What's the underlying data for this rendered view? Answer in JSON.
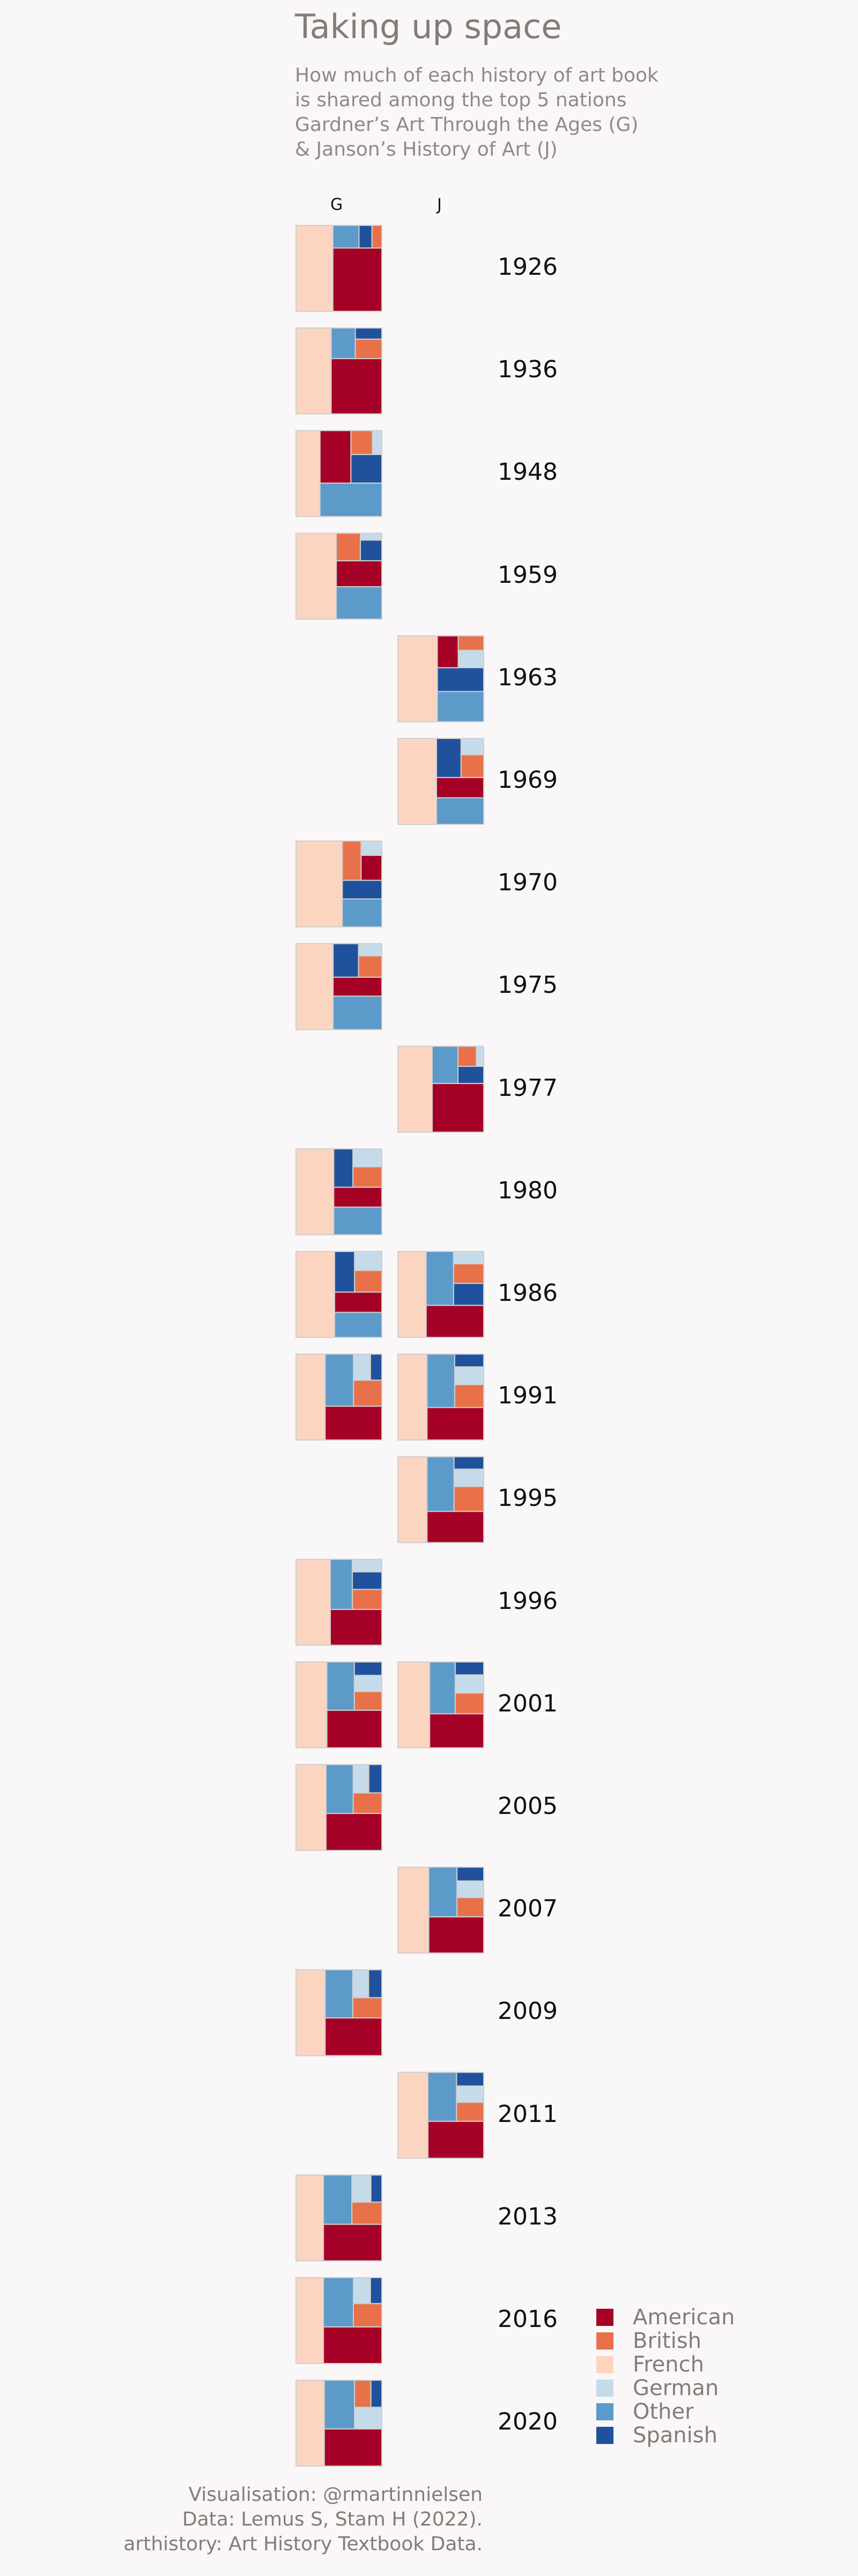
{
  "title": "Taking up space",
  "subtitle": [
    "How much of each history of art book",
    "is shared among the top 5 nations",
    "Gardner’s Art Through the Ages (G)",
    "& Janson’s History of Art (J)"
  ],
  "caption": [
    "Visualisation: @rmartinnielsen",
    "Data: Lemus S, Stam H (2022).",
    "arthistory: Art History Textbook Data."
  ],
  "chart_data": {
    "type": "treemap",
    "columns": [
      "G",
      "J"
    ],
    "years": [
      "1926",
      "1936",
      "1948",
      "1959",
      "1963",
      "1969",
      "1970",
      "1975",
      "1977",
      "1980",
      "1986",
      "1991",
      "1995",
      "1996",
      "2001",
      "2005",
      "2007",
      "2009",
      "2011",
      "2013",
      "2016",
      "2020"
    ],
    "categories": [
      "American",
      "British",
      "French",
      "German",
      "Other",
      "Spanish"
    ],
    "colors": {
      "American": "#a50026",
      "British": "#e8714a",
      "French": "#fcd5c1",
      "German": "#c6dbea",
      "Other": "#5c9ac9",
      "Spanish": "#20519d"
    },
    "entries": [
      {
        "book": "G",
        "year": "1926",
        "shares": {
          "American": 0.42,
          "French": 0.43,
          "Other": 0.08,
          "British": 0.03,
          "Spanish": 0.04
        }
      },
      {
        "book": "G",
        "year": "1936",
        "shares": {
          "American": 0.38,
          "French": 0.41,
          "Other": 0.1,
          "British": 0.07,
          "Spanish": 0.04
        }
      },
      {
        "book": "G",
        "year": "1948",
        "shares": {
          "French": 0.28,
          "Other": 0.28,
          "American": 0.22,
          "Spanish": 0.12,
          "British": 0.07,
          "German": 0.03
        }
      },
      {
        "book": "G",
        "year": "1959",
        "shares": {
          "French": 0.47,
          "Other": 0.2,
          "American": 0.16,
          "British": 0.09,
          "Spanish": 0.06,
          "German": 0.02
        }
      },
      {
        "book": "J",
        "year": "1963",
        "shares": {
          "French": 0.46,
          "Other": 0.19,
          "Spanish": 0.15,
          "American": 0.09,
          "German": 0.06,
          "British": 0.05
        }
      },
      {
        "book": "J",
        "year": "1969",
        "shares": {
          "French": 0.45,
          "Other": 0.17,
          "American": 0.13,
          "Spanish": 0.13,
          "British": 0.07,
          "German": 0.05
        }
      },
      {
        "book": "G",
        "year": "1970",
        "shares": {
          "French": 0.54,
          "Other": 0.15,
          "Spanish": 0.1,
          "British": 0.1,
          "American": 0.07,
          "German": 0.04
        }
      },
      {
        "book": "G",
        "year": "1975",
        "shares": {
          "French": 0.45,
          "Other": 0.23,
          "American": 0.13,
          "Spanish": 0.12,
          "British": 0.07,
          "German": 0.04
        }
      },
      {
        "book": "J",
        "year": "1977",
        "shares": {
          "French": 0.4,
          "American": 0.34,
          "Other": 0.13,
          "Spanish": 0.06,
          "British": 0.05,
          "German": 0.02
        }
      },
      {
        "book": "G",
        "year": "1980",
        "shares": {
          "French": 0.44,
          "Other": 0.18,
          "American": 0.13,
          "Spanish": 0.1,
          "British": 0.08,
          "German": 0.07
        }
      },
      {
        "book": "G",
        "year": "1986",
        "shares": {
          "French": 0.45,
          "Other": 0.16,
          "American": 0.13,
          "Spanish": 0.11,
          "British": 0.08,
          "German": 0.07
        }
      },
      {
        "book": "J",
        "year": "1986",
        "shares": {
          "French": 0.33,
          "American": 0.25,
          "Other": 0.2,
          "British": 0.08,
          "Spanish": 0.09,
          "German": 0.05
        }
      },
      {
        "book": "G",
        "year": "1991",
        "shares": {
          "French": 0.34,
          "American": 0.26,
          "Other": 0.2,
          "British": 0.1,
          "German": 0.06,
          "Spanish": 0.04
        }
      },
      {
        "book": "J",
        "year": "1991",
        "shares": {
          "French": 0.34,
          "American": 0.25,
          "Other": 0.2,
          "British": 0.09,
          "German": 0.07,
          "Spanish": 0.05
        }
      },
      {
        "book": "J",
        "year": "1995",
        "shares": {
          "French": 0.34,
          "American": 0.24,
          "Other": 0.2,
          "British": 0.1,
          "German": 0.07,
          "Spanish": 0.05
        }
      },
      {
        "book": "G",
        "year": "1996",
        "shares": {
          "French": 0.4,
          "American": 0.25,
          "Other": 0.15,
          "British": 0.08,
          "Spanish": 0.07,
          "German": 0.05
        }
      },
      {
        "book": "G",
        "year": "2001",
        "shares": {
          "French": 0.36,
          "American": 0.28,
          "Other": 0.18,
          "British": 0.07,
          "German": 0.06,
          "Spanish": 0.05
        }
      },
      {
        "book": "J",
        "year": "2001",
        "shares": {
          "French": 0.37,
          "American": 0.25,
          "Other": 0.18,
          "British": 0.08,
          "German": 0.07,
          "Spanish": 0.05
        }
      },
      {
        "book": "G",
        "year": "2005",
        "shares": {
          "French": 0.35,
          "American": 0.28,
          "Other": 0.18,
          "British": 0.08,
          "German": 0.06,
          "Spanish": 0.05
        }
      },
      {
        "book": "J",
        "year": "2007",
        "shares": {
          "French": 0.36,
          "American": 0.27,
          "Other": 0.19,
          "British": 0.07,
          "German": 0.06,
          "Spanish": 0.05
        }
      },
      {
        "book": "G",
        "year": "2009",
        "shares": {
          "French": 0.34,
          "American": 0.29,
          "Other": 0.18,
          "British": 0.08,
          "German": 0.06,
          "Spanish": 0.05
        }
      },
      {
        "book": "J",
        "year": "2011",
        "shares": {
          "French": 0.35,
          "American": 0.28,
          "Other": 0.19,
          "British": 0.07,
          "German": 0.06,
          "Spanish": 0.05
        }
      },
      {
        "book": "G",
        "year": "2013",
        "shares": {
          "French": 0.32,
          "American": 0.29,
          "Other": 0.19,
          "British": 0.09,
          "German": 0.07,
          "Spanish": 0.04
        }
      },
      {
        "book": "G",
        "year": "2016",
        "shares": {
          "French": 0.32,
          "American": 0.29,
          "Other": 0.2,
          "British": 0.09,
          "German": 0.06,
          "Spanish": 0.04
        }
      },
      {
        "book": "G",
        "year": "2020",
        "shares": {
          "French": 0.33,
          "American": 0.29,
          "Other": 0.2,
          "German": 0.08,
          "British": 0.06,
          "Spanish": 0.04
        }
      }
    ]
  }
}
